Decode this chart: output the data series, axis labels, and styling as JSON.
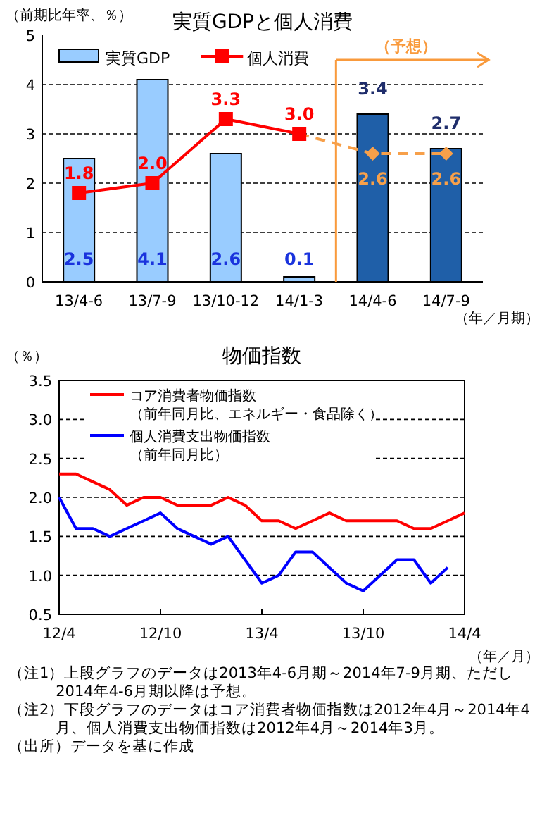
{
  "chart_data": [
    {
      "type": "bar",
      "title": "実質GDPと個人消費",
      "ylabel": "（前期比年率、％）",
      "xlabel": "（年／月期）",
      "categories": [
        "13/4-6",
        "13/7-9",
        "13/10-12",
        "14/1-3",
        "14/4-6",
        "14/7-9"
      ],
      "series": [
        {
          "name": "実質GDP",
          "type": "bar",
          "colors": [
            "#99ccff",
            "#99ccff",
            "#99ccff",
            "#99ccff",
            "#1f5fa8",
            "#1f5fa8"
          ],
          "values": [
            2.5,
            4.1,
            2.6,
            0.1,
            3.4,
            2.7
          ]
        },
        {
          "type": "line",
          "color": "#f7a04a",
          "line_style": "dashed",
          "marker": "diamond",
          "values": [
            null,
            null,
            null,
            3.0,
            2.6,
            2.6
          ],
          "value_labels": [
            null,
            null,
            null,
            null,
            "2.6",
            "2.6"
          ]
        },
        {
          "name": "個人消費",
          "type": "line",
          "color": "#ff0000",
          "line_style": "solid",
          "marker": "square",
          "values": [
            1.8,
            2.0,
            3.3,
            3.0,
            null,
            null
          ],
          "value_labels": [
            "1.8",
            "2.0",
            "3.3",
            "3.0",
            null,
            null
          ]
        }
      ],
      "data_labels": true,
      "ylim": [
        0,
        5
      ],
      "yticks": [
        0,
        1,
        2,
        3,
        4,
        5
      ],
      "grid": "y",
      "legend": "top left",
      "ref_lines": [
        {
          "axis": "x",
          "value": "14/4-6",
          "label": "（予想）",
          "color": "#f99a3c"
        }
      ]
    },
    {
      "type": "line",
      "title": "物価指数",
      "ylabel": "（％）",
      "xlabel": "（年／月）",
      "x": [
        "2012-04",
        "2012-05",
        "2012-06",
        "2012-07",
        "2012-08",
        "2012-09",
        "2012-10",
        "2012-11",
        "2012-12",
        "2013-01",
        "2013-02",
        "2013-03",
        "2013-04",
        "2013-05",
        "2013-06",
        "2013-07",
        "2013-08",
        "2013-09",
        "2013-10",
        "2013-11",
        "2013-12",
        "2014-01",
        "2014-02",
        "2014-03",
        "2014-04"
      ],
      "series": [
        {
          "name": "コア消費者物価指数（前年同月比、エネルギー・食品除く）",
          "color": "#ff0000",
          "values": [
            2.3,
            2.3,
            2.2,
            2.1,
            1.9,
            2.0,
            2.0,
            1.9,
            1.9,
            1.9,
            2.0,
            1.9,
            1.7,
            1.7,
            1.6,
            1.7,
            1.8,
            1.7,
            1.7,
            1.7,
            1.7,
            1.6,
            1.6,
            1.7,
            1.8
          ]
        },
        {
          "name": "個人消費支出物価指数（前年同月比）",
          "color": "#0000ff",
          "values": [
            2.0,
            1.6,
            1.6,
            1.5,
            1.6,
            1.7,
            1.8,
            1.6,
            1.5,
            1.4,
            1.5,
            1.2,
            0.9,
            1.0,
            1.3,
            1.3,
            1.1,
            0.9,
            0.8,
            1.0,
            1.2,
            1.2,
            0.9,
            1.1,
            null
          ]
        }
      ],
      "xlim": [
        "2012-04",
        "2014-04"
      ],
      "xticks": [
        {
          "value": "2012-04",
          "label": "12/4"
        },
        {
          "value": "2012-10",
          "label": "12/10"
        },
        {
          "value": "2013-04",
          "label": "13/4"
        },
        {
          "value": "2013-10",
          "label": "13/10"
        },
        {
          "value": "2014-04",
          "label": "14/4"
        }
      ],
      "ylim": [
        0.5,
        3.5
      ],
      "yticks": [
        {
          "value": 0.5,
          "label": "0.5"
        },
        {
          "value": 1.0,
          "label": "1.0"
        },
        {
          "value": 1.5,
          "label": "1.5"
        },
        {
          "value": 2.0,
          "label": "2.0"
        },
        {
          "value": 2.5,
          "label": "2.5"
        },
        {
          "value": 3.0,
          "label": "3.0"
        },
        {
          "value": 3.5,
          "label": "3.5"
        }
      ],
      "grid": "y",
      "legend": "top left",
      "annotations": [
        "（注1）上段グラフのデータは2013年4-6月期～2014年7-9月期、ただし2014年4-6月期以降は予想。",
        "（注2）下段グラフのデータはコア消費者物価指数は2012年4月～2014年4月、個人消費支出物価指数は2012年4月～2014年3月。",
        "（出所）データを基に作成"
      ]
    }
  ]
}
